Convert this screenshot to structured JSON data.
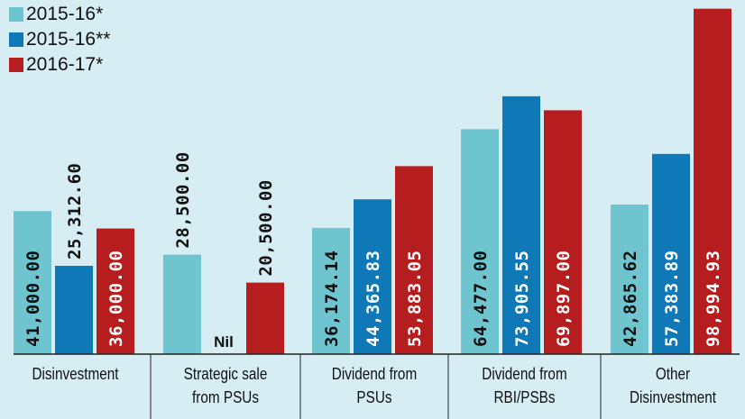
{
  "chart_data": {
    "type": "bar",
    "categories": [
      "Disinvestment",
      "Strategic sale\nfrom PSUs",
      "Dividend from\nPSUs",
      "Dividend from\nRBI/PSBs",
      "Other\nDisinvestment"
    ],
    "series": [
      {
        "name": "2015-16*",
        "color": "#6ec5d0",
        "values": [
          41000.0,
          28500.0,
          36174.14,
          64477.0,
          42865.62
        ],
        "labels": [
          "41,000.00",
          "28,500.00",
          "36,174.14",
          "64,477.00",
          "42,865.62"
        ]
      },
      {
        "name": "2015-16**",
        "color": "#0f78b6",
        "values": [
          25312.6,
          null,
          44365.83,
          73905.55,
          57383.89
        ],
        "labels": [
          "25,312.60",
          "Nil",
          "44,365.83",
          "73,905.55",
          "57,383.89"
        ]
      },
      {
        "name": "2016-17*",
        "color": "#b61d1f",
        "values": [
          36000.0,
          20500.0,
          53883.05,
          69897.0,
          98994.93
        ],
        "labels": [
          "36,000.00",
          "20,500.00",
          "53,883.05",
          "69,897.00",
          "98,994.93"
        ]
      }
    ],
    "ylim": [
      0,
      101500
    ],
    "legend": "top-left",
    "grid": false
  }
}
